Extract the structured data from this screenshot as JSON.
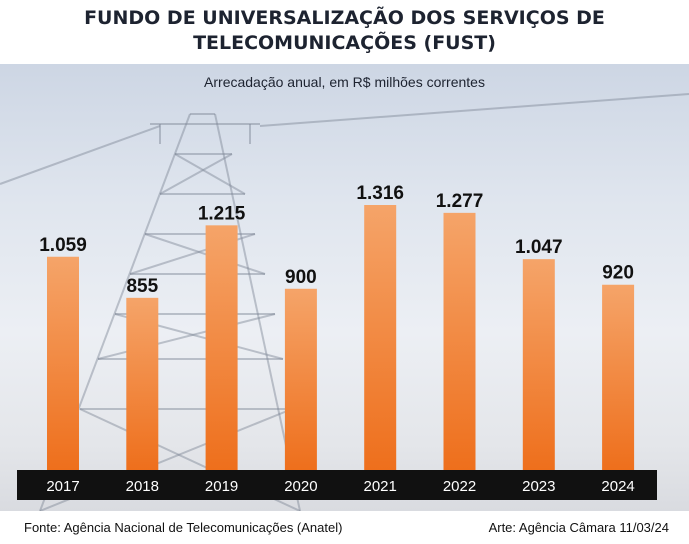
{
  "title_line1": "FUNDO DE UNIVERSALIZAÇÃO DOS SERVIÇOS DE",
  "title_line2": "TELECOMUNICAÇÕES (FUST)",
  "subtitle": "Arrecadação anual, em R$ milhões correntes",
  "source": "Fonte: Agência Nacional de Telecomunicações (Anatel)",
  "credit": "Arte: Agência Câmara 11/03/24",
  "colors": {
    "bar_top": "#f5a469",
    "bar_bottom": "#ee6f1c",
    "axis_band": "#111111"
  },
  "chart_data": {
    "type": "bar",
    "categories": [
      "2017",
      "2018",
      "2019",
      "2020",
      "2021",
      "2022",
      "2023",
      "2024"
    ],
    "values": [
      1059,
      855,
      1215,
      900,
      1316,
      1277,
      1047,
      920
    ],
    "data_labels": [
      "1.059",
      "855",
      "1.215",
      "900",
      "1.316",
      "1.277",
      "1.047",
      "920"
    ],
    "ylim": [
      0,
      1400
    ],
    "grid": false,
    "legend": "none"
  }
}
